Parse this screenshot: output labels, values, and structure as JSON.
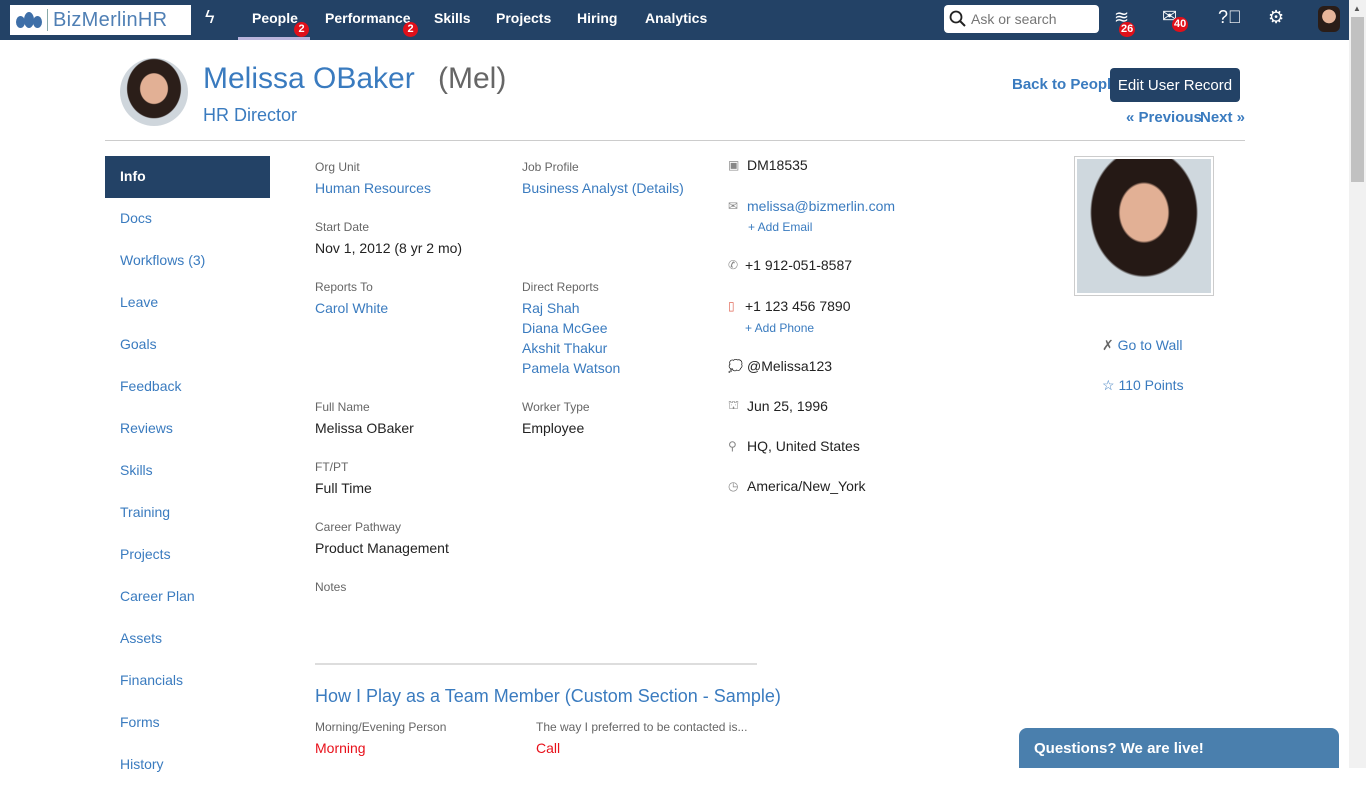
{
  "nav": {
    "logo": "BizMerlinHR",
    "items": [
      {
        "label": "People",
        "badge": "2",
        "active": true
      },
      {
        "label": "Performance",
        "badge": "2"
      },
      {
        "label": "Skills"
      },
      {
        "label": "Projects"
      },
      {
        "label": "Hiring"
      },
      {
        "label": "Analytics"
      }
    ],
    "search_placeholder": "Ask or search",
    "layers_badge": "26",
    "mail_badge": "40"
  },
  "profile": {
    "name": "Melissa OBaker",
    "nickname": "(Mel)",
    "title": "HR Director",
    "back": "Back to People",
    "edit": "Edit User Record",
    "prev": "« Previous",
    "next": "Next »"
  },
  "sidebar": [
    "Info",
    "Docs",
    "Workflows (3)",
    "Leave",
    "Goals",
    "Feedback",
    "Reviews",
    "Skills",
    "Training",
    "Projects",
    "Career Plan",
    "Assets",
    "Financials",
    "Forms",
    "History"
  ],
  "fields": {
    "org_unit": {
      "label": "Org Unit",
      "value": "Human Resources"
    },
    "job_profile": {
      "label": "Job Profile",
      "value": "Business Analyst (Details)"
    },
    "start_date": {
      "label": "Start Date",
      "value": "Nov 1, 2012 (8 yr 2 mo)"
    },
    "reports_to": {
      "label": "Reports To",
      "value": "Carol White"
    },
    "direct_reports": {
      "label": "Direct Reports",
      "values": [
        "Raj Shah",
        "Diana McGee",
        "Akshit Thakur",
        "Pamela Watson"
      ]
    },
    "full_name": {
      "label": "Full Name",
      "value": "Melissa OBaker"
    },
    "worker_type": {
      "label": "Worker Type",
      "value": "Employee"
    },
    "ftpt": {
      "label": "FT/PT",
      "value": "Full Time"
    },
    "career": {
      "label": "Career Pathway",
      "value": "Product Management"
    },
    "notes": {
      "label": "Notes"
    }
  },
  "contact": {
    "id": "DM18535",
    "email": "melissa@bizmerlin.com",
    "add_email": "+ Add Email",
    "phone": "+1 912-051-8587",
    "mobile": "+1 123 456 7890",
    "add_phone": "+ Add Phone",
    "handle": "@Melissa123",
    "birthday": "Jun 25, 1996",
    "location": "HQ, United States",
    "timezone": "America/New_York"
  },
  "right": {
    "wall": "Go to Wall",
    "points": "110 Points"
  },
  "custom": {
    "title": "How I Play as a Team Member (Custom Section - Sample)",
    "f1": {
      "label": "Morning/Evening Person",
      "value": "Morning"
    },
    "f2": {
      "label": "The way I preferred to be contacted is...",
      "value": "Call"
    }
  },
  "chat": "Questions? We are live!"
}
